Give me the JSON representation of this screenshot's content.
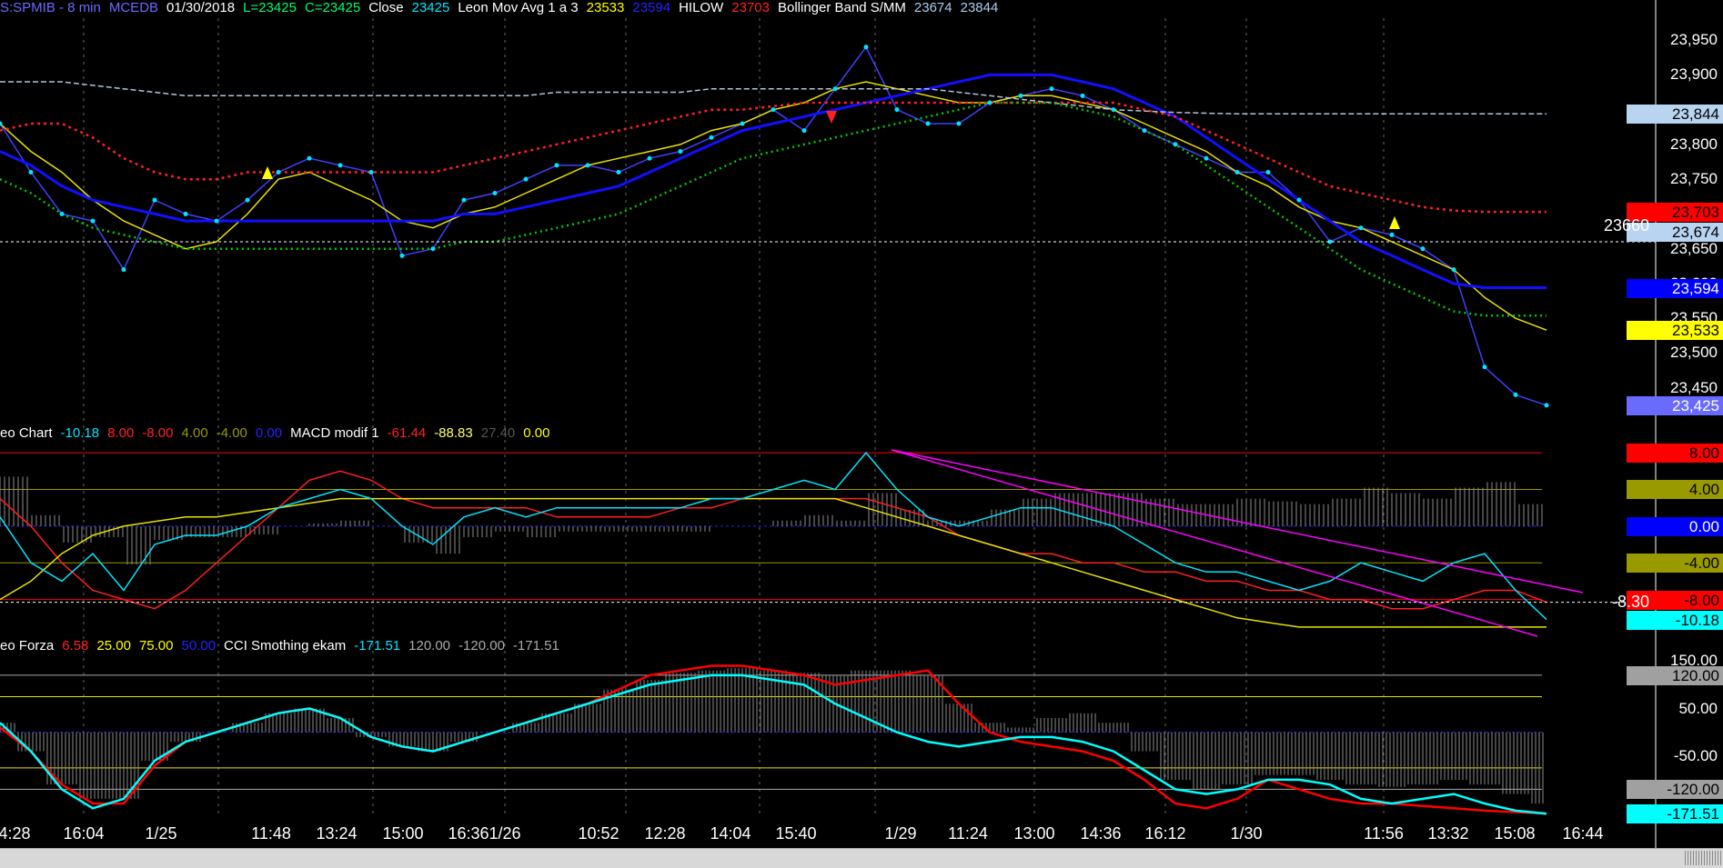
{
  "header_price": [
    {
      "text": "S:SPMIB - 8 min",
      "color": "#6a6aff"
    },
    {
      "text": "MCEDB",
      "color": "#6a6aff"
    },
    {
      "text": "01/30/2018",
      "color": "#ffffff"
    },
    {
      "text": "L=23425",
      "color": "#00ff66"
    },
    {
      "text": "C=23425",
      "color": "#00ff66"
    },
    {
      "text": "Close",
      "color": "#ffffff"
    },
    {
      "text": "23425",
      "color": "#00e5ff"
    },
    {
      "text": "Leon Mov Avg 1 a 3",
      "color": "#ffffff"
    },
    {
      "text": "23533",
      "color": "#ffff00"
    },
    {
      "text": "23594",
      "color": "#2222ff"
    },
    {
      "text": "HILOW",
      "color": "#ffffff"
    },
    {
      "text": "23703",
      "color": "#ff2222"
    },
    {
      "text": "Bollinger Band S/MM",
      "color": "#ffffff"
    },
    {
      "text": "23674",
      "color": "#aaccee"
    },
    {
      "text": "23844",
      "color": "#aaccee"
    }
  ],
  "header_macd": [
    {
      "text": "eo Chart",
      "color": "#ffffff"
    },
    {
      "text": "-10.18",
      "color": "#00e5ff"
    },
    {
      "text": "8.00",
      "color": "#ff2222"
    },
    {
      "text": "-8.00",
      "color": "#ff2222"
    },
    {
      "text": "4.00",
      "color": "#999900"
    },
    {
      "text": "-4.00",
      "color": "#999900"
    },
    {
      "text": "0.00",
      "color": "#2222ff"
    },
    {
      "text": "MACD modif 1",
      "color": "#ffffff"
    },
    {
      "text": "-61.44",
      "color": "#ff2222"
    },
    {
      "text": "-88.83",
      "color": "#ffff66"
    },
    {
      "text": "27.40",
      "color": "#555555"
    },
    {
      "text": "0.00",
      "color": "#ffff00"
    }
  ],
  "header_cci": [
    {
      "text": "eo Forza",
      "color": "#ffffff"
    },
    {
      "text": "6.58",
      "color": "#ff2222"
    },
    {
      "text": "25.00",
      "color": "#ffff00"
    },
    {
      "text": "75.00",
      "color": "#ffff00"
    },
    {
      "text": "50.00",
      "color": "#2222ff"
    },
    {
      "text": "CCI Smothing ekam",
      "color": "#ffffff"
    },
    {
      "text": "-171.51",
      "color": "#00e5ff"
    },
    {
      "text": "120.00",
      "color": "#aaaaaa"
    },
    {
      "text": "-120.00",
      "color": "#aaaaaa"
    },
    {
      "text": "-171.51",
      "color": "#aaaaaa"
    }
  ],
  "price_axis_labels": [
    "23,950",
    "23,900",
    "23,800",
    "23,750",
    "23,650",
    "23,600",
    "23,550",
    "23,500",
    "23,450"
  ],
  "price_axis_boxes": [
    {
      "text": "23,844",
      "value": 23844,
      "bg": "#b8d4f0",
      "fg": "#000000"
    },
    {
      "text": "23,703",
      "value": 23703,
      "bg": "#ff0000",
      "fg": "#000000"
    },
    {
      "text": "23,674",
      "value": 23674,
      "bg": "#b8d4f0",
      "fg": "#000000"
    },
    {
      "text": "23,594",
      "value": 23594,
      "bg": "#0000ff",
      "fg": "#ffffff"
    },
    {
      "text": "23,533",
      "value": 23533,
      "bg": "#ffff00",
      "fg": "#000000"
    },
    {
      "text": "23,425",
      "value": 23425,
      "bg": "#6a6aff",
      "fg": "#ffffff"
    }
  ],
  "price_marker": {
    "text": "23660",
    "value": 23660
  },
  "macd_axis_boxes": [
    {
      "text": "8.00",
      "value": 8,
      "bg": "#ff0000",
      "fg": "#000000"
    },
    {
      "text": "4.00",
      "value": 4,
      "bg": "#999900",
      "fg": "#000000"
    },
    {
      "text": "0.00",
      "value": 0,
      "bg": "#0000ff",
      "fg": "#ffffff"
    },
    {
      "text": "-4.00",
      "value": -4,
      "bg": "#999900",
      "fg": "#000000"
    },
    {
      "text": "-8.00",
      "value": -8,
      "bg": "#ff0000",
      "fg": "#000000"
    },
    {
      "text": "-10.18",
      "value": -10.18,
      "bg": "#00ffff",
      "fg": "#000000"
    }
  ],
  "macd_marker": {
    "text": "-8.30",
    "value": -8.3
  },
  "cci_axis_labels": [
    "150.00",
    "50.00",
    "-50.00"
  ],
  "cci_axis_boxes": [
    {
      "text": "120.00",
      "value": 120,
      "bg": "#a0a0a0",
      "fg": "#000000"
    },
    {
      "text": "-120.00",
      "value": -120,
      "bg": "#a0a0a0",
      "fg": "#000000"
    },
    {
      "text": "-171.51",
      "value": -171.51,
      "bg": "#00ffff",
      "fg": "#000000"
    }
  ],
  "time_labels": [
    "4:28",
    "16:04",
    "1/25",
    "11:48",
    "13:24",
    "15:00",
    "16:36",
    "1/26",
    "10:52",
    "12:28",
    "14:04",
    "15:40",
    "1/29",
    "11:24",
    "13:00",
    "14:36",
    "16:12",
    "1/30",
    "11:56",
    "13:32",
    "15:08",
    "16:44"
  ],
  "colors": {
    "background": "#000000",
    "price": "#00e5ff",
    "price_line": "#4040ff",
    "ma_fast": "#e8e000",
    "ma_slow": "#1010ff",
    "hilow": "#ff2020",
    "bollinger": "#b0c4de",
    "green_dots": "#00cc00",
    "macd_cyan": "#00e5ff",
    "macd_red": "#ff2020",
    "macd_yellow": "#e8e000",
    "trend": "#ff00ff",
    "cci_cyan": "#00ffff",
    "cci_red": "#ff0000",
    "hist_grey": "#8c8c8c"
  },
  "chart_data": {
    "type": "line",
    "title": "S:SPMIB - 8 min",
    "panels": [
      {
        "name": "price",
        "ylim": [
          23400,
          23975
        ],
        "x": [
          0,
          0.02,
          0.04,
          0.06,
          0.08,
          0.1,
          0.12,
          0.14,
          0.16,
          0.18,
          0.2,
          0.22,
          0.24,
          0.26,
          0.28,
          0.3,
          0.32,
          0.34,
          0.36,
          0.38,
          0.4,
          0.42,
          0.44,
          0.46,
          0.48,
          0.5,
          0.52,
          0.54,
          0.56,
          0.58,
          0.6,
          0.62,
          0.64,
          0.66,
          0.68,
          0.7,
          0.72,
          0.74,
          0.76,
          0.78,
          0.8,
          0.82,
          0.84,
          0.86,
          0.88,
          0.9,
          0.92,
          0.94,
          0.96,
          0.98,
          1.0
        ],
        "series": [
          {
            "name": "Close",
            "values": [
              23830,
              23760,
              23700,
              23690,
              23620,
              23720,
              23700,
              23690,
              23720,
              23760,
              23780,
              23770,
              23760,
              23640,
              23650,
              23720,
              23730,
              23750,
              23770,
              23770,
              23760,
              23780,
              23790,
              23810,
              23830,
              23850,
              23820,
              23880,
              23940,
              23850,
              23830,
              23830,
              23860,
              23870,
              23880,
              23870,
              23850,
              23820,
              23800,
              23780,
              23760,
              23760,
              23720,
              23660,
              23680,
              23670,
              23650,
              23620,
              23480,
              23440,
              23425
            ]
          },
          {
            "name": "Leon Mov Avg",
            "values": [
              23830,
              23790,
              23760,
              23720,
              23690,
              23670,
              23650,
              23660,
              23700,
              23750,
              23760,
              23740,
              23720,
              23690,
              23680,
              23700,
              23710,
              23730,
              23750,
              23770,
              23780,
              23790,
              23800,
              23820,
              23830,
              23850,
              23860,
              23880,
              23890,
              23880,
              23870,
              23860,
              23860,
              23870,
              23870,
              23860,
              23850,
              23830,
              23810,
              23790,
              23760,
              23740,
              23710,
              23690,
              23680,
              23660,
              23640,
              23620,
              23580,
              23550,
              23533
            ]
          },
          {
            "name": "Slow MA",
            "values": [
              23790,
              23770,
              23740,
              23720,
              23710,
              23700,
              23690,
              23690,
              23690,
              23690,
              23690,
              23690,
              23690,
              23690,
              23690,
              23700,
              23700,
              23710,
              23720,
              23730,
              23740,
              23760,
              23780,
              23800,
              23820,
              23830,
              23840,
              23850,
              23860,
              23870,
              23880,
              23890,
              23900,
              23900,
              23900,
              23890,
              23880,
              23860,
              23840,
              23810,
              23780,
              23750,
              23720,
              23690,
              23660,
              23640,
              23620,
              23600,
              23594,
              23594,
              23594
            ]
          },
          {
            "name": "HILOW",
            "values": [
              23820,
              23830,
              23830,
              23810,
              23780,
              23760,
              23750,
              23750,
              23760,
              23760,
              23760,
              23760,
              23760,
              23760,
              23760,
              23770,
              23780,
              23790,
              23800,
              23810,
              23820,
              23830,
              23840,
              23850,
              23850,
              23855,
              23860,
              23860,
              23860,
              23860,
              23860,
              23860,
              23860,
              23860,
              23860,
              23860,
              23860,
              23850,
              23840,
              23820,
              23800,
              23780,
              23760,
              23740,
              23730,
              23720,
              23710,
              23705,
              23703,
              23703,
              23703
            ]
          },
          {
            "name": "Bollinger",
            "values": [
              23890,
              23890,
              23890,
              23885,
              23880,
              23875,
              23870,
              23870,
              23870,
              23870,
              23870,
              23870,
              23870,
              23870,
              23870,
              23870,
              23870,
              23870,
              23875,
              23875,
              23875,
              23875,
              23875,
              23880,
              23880,
              23880,
              23880,
              23880,
              23880,
              23880,
              23880,
              23875,
              23870,
              23865,
              23860,
              23855,
              23850,
              23848,
              23846,
              23845,
              23844,
              23844,
              23844,
              23844,
              23844,
              23844,
              23844,
              23844,
              23844,
              23844,
              23844
            ]
          }
        ]
      },
      {
        "name": "macd",
        "ylim": [
          -12,
          9
        ],
        "series": [
          {
            "name": "Oscillator",
            "values": [
              1,
              -4,
              -6,
              -3,
              -7,
              -2,
              -1,
              -1,
              0,
              2,
              3,
              4,
              3,
              0,
              -2,
              1,
              2,
              1,
              2,
              2,
              2,
              2,
              2,
              3,
              3,
              4,
              5,
              4,
              8,
              4,
              1,
              0,
              1,
              2,
              2,
              1,
              0,
              -2,
              -4,
              -5,
              -5,
              -6,
              -7,
              -6,
              -4,
              -5,
              -6,
              -4,
              -3,
              -7,
              -10.18
            ]
          },
          {
            "name": "Signal red",
            "values": [
              3,
              0,
              -4,
              -7,
              -8,
              -9,
              -7,
              -4,
              -1,
              2,
              5,
              6,
              5,
              3,
              2,
              2,
              2,
              2,
              1,
              1,
              1,
              1,
              2,
              2,
              3,
              3,
              3,
              3,
              3,
              2,
              1,
              -1,
              -2,
              -3,
              -3,
              -4,
              -4,
              -5,
              -5,
              -6,
              -6,
              -7,
              -7,
              -8,
              -8,
              -9,
              -9,
              -8,
              -7,
              -7,
              -8.3
            ]
          },
          {
            "name": "Signal yellow",
            "values": [
              -8,
              -6,
              -3,
              -1,
              0,
              0.5,
              1,
              1,
              1.5,
              2,
              2.5,
              3,
              3,
              3,
              3,
              3,
              3,
              3,
              3,
              3,
              3,
              3,
              3,
              3,
              3,
              3,
              3,
              3,
              2,
              1,
              0,
              -1,
              -2,
              -3,
              -4,
              -5,
              -6,
              -7,
              -8,
              -9,
              -10,
              -10.5,
              -11,
              -11,
              -11,
              -11,
              -11,
              -11,
              -11,
              -11,
              -11
            ]
          }
        ]
      },
      {
        "name": "cci",
        "ylim": [
          -190,
          160
        ],
        "series": [
          {
            "name": "CCI cyan",
            "values": [
              20,
              -40,
              -120,
              -160,
              -140,
              -60,
              -20,
              0,
              20,
              40,
              50,
              30,
              -10,
              -30,
              -40,
              -20,
              0,
              20,
              40,
              60,
              80,
              100,
              110,
              120,
              120,
              110,
              100,
              60,
              30,
              0,
              -20,
              -30,
              -20,
              -10,
              -10,
              -20,
              -40,
              -80,
              -120,
              -130,
              -120,
              -100,
              -100,
              -110,
              -140,
              -150,
              -140,
              -130,
              -150,
              -165,
              -171.51
            ]
          },
          {
            "name": "CCI red",
            "values": [
              10,
              -40,
              -110,
              -150,
              -150,
              -70,
              -20,
              0,
              20,
              40,
              50,
              30,
              -10,
              -30,
              -40,
              -20,
              0,
              20,
              40,
              60,
              90,
              120,
              130,
              140,
              140,
              130,
              120,
              100,
              110,
              120,
              130,
              60,
              0,
              -20,
              -30,
              -40,
              -60,
              -100,
              -150,
              -160,
              -140,
              -100,
              -120,
              -140,
              -150,
              -150,
              -155,
              -160,
              -165,
              -168,
              -171
            ]
          },
          {
            "name": "Histogram grey",
            "values": [
              20,
              -40,
              -110,
              -140,
              -140,
              -60,
              -20,
              0,
              20,
              40,
              50,
              30,
              -10,
              -30,
              -40,
              -20,
              0,
              20,
              40,
              60,
              90,
              110,
              125,
              130,
              135,
              130,
              125,
              120,
              130,
              130,
              120,
              60,
              20,
              10,
              30,
              40,
              20,
              -40,
              -100,
              -120,
              -110,
              -90,
              -90,
              -100,
              -110,
              -115,
              -110,
              -100,
              -110,
              -130,
              -150
            ]
          }
        ]
      }
    ]
  }
}
